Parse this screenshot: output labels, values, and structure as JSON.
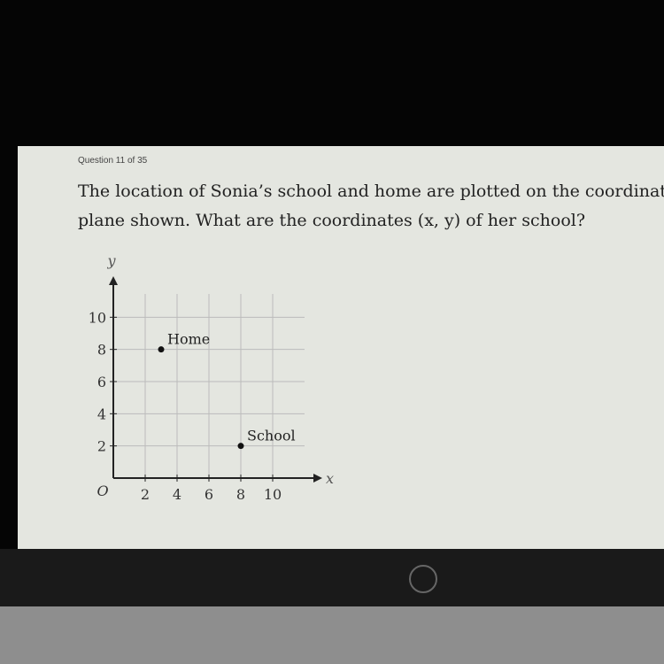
{
  "question": {
    "number": "Question 11 of 35",
    "lines": [
      "The location of Sonia’s school and home are plotted on the coordinate",
      "plane shown. What are the coordinates (x, y) of her school?"
    ]
  },
  "chart_data": {
    "type": "scatter",
    "x_label": "x",
    "y_label": "y",
    "origin_label": "O",
    "xlim": [
      0,
      12
    ],
    "ylim": [
      0,
      12
    ],
    "xticks": [
      2,
      4,
      6,
      8,
      10
    ],
    "yticks": [
      2,
      4,
      6,
      8,
      10
    ],
    "grid": true,
    "color": "#111111",
    "points": [
      {
        "label": "Home",
        "x": 3,
        "y": 8
      },
      {
        "label": "School",
        "x": 8,
        "y": 2
      }
    ]
  }
}
